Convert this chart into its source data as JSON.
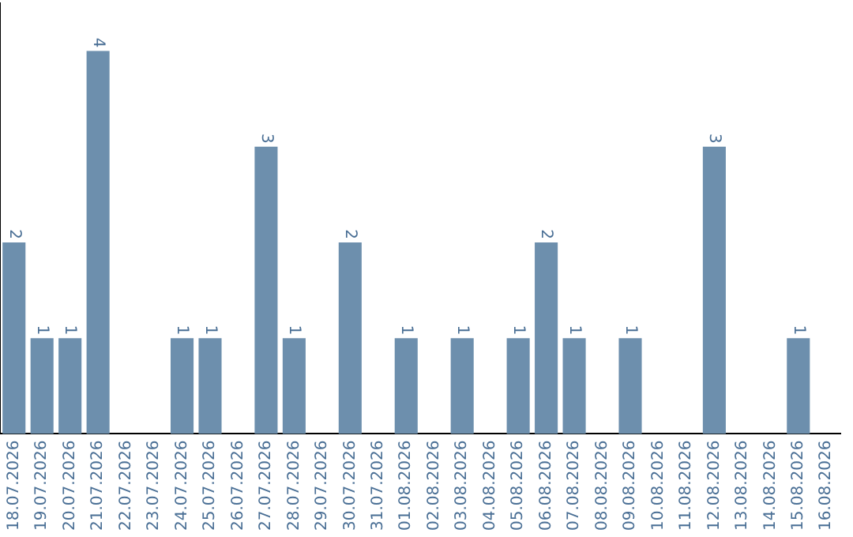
{
  "chart_data": {
    "type": "bar",
    "categories": [
      "18.07.2026",
      "19.07.2026",
      "20.07.2026",
      "21.07.2026",
      "22.07.2026",
      "23.07.2026",
      "24.07.2026",
      "25.07.2026",
      "26.07.2026",
      "27.07.2026",
      "28.07.2026",
      "29.07.2026",
      "30.07.2026",
      "31.07.2026",
      "01.08.2026",
      "02.08.2026",
      "03.08.2026",
      "04.08.2026",
      "05.08.2026",
      "06.08.2026",
      "07.08.2026",
      "08.08.2026",
      "09.08.2026",
      "10.08.2026",
      "11.08.2026",
      "12.08.2026",
      "13.08.2026",
      "14.08.2026",
      "15.08.2026",
      "16.08.2026"
    ],
    "values": [
      2,
      1,
      1,
      4,
      0,
      0,
      1,
      1,
      0,
      3,
      1,
      0,
      2,
      0,
      1,
      0,
      1,
      0,
      1,
      2,
      1,
      0,
      1,
      0,
      0,
      3,
      0,
      0,
      1,
      0
    ],
    "value_labels": [
      "2",
      "1",
      "1",
      "4",
      null,
      null,
      "1",
      "1",
      null,
      "3",
      "1",
      null,
      "2",
      null,
      "1",
      null,
      "1",
      null,
      "1",
      "2",
      "1",
      null,
      "1",
      null,
      null,
      "3",
      null,
      null,
      "1",
      null
    ],
    "color": "#6d8fad",
    "tick_labels": "x",
    "grid": false,
    "legend": false
  }
}
